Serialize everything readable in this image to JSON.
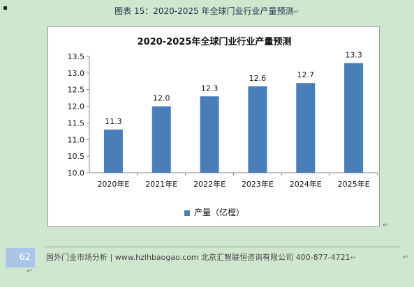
{
  "caption": "图表  15：2020-2025 年全球门业行业产量预测",
  "chart_data": {
    "type": "bar",
    "title": "2020-2025年全球门业行业产量预测",
    "categories": [
      "2020年E",
      "2021年E",
      "2022年E",
      "2023年E",
      "2024年E",
      "2025年E"
    ],
    "series": [
      {
        "name": "产量（亿樘）",
        "values": [
          11.3,
          12.0,
          12.3,
          12.6,
          12.7,
          13.3
        ],
        "color": "#4a7ebb"
      }
    ],
    "data_labels": [
      "11.3",
      "12.0",
      "12.3",
      "12.6",
      "12.7",
      "13.3"
    ],
    "y_ticks": [
      "10.0",
      "10.5",
      "11.0",
      "11.5",
      "12.0",
      "12.5",
      "13.0",
      "13.5"
    ],
    "ylim": [
      10.0,
      13.5
    ],
    "grid": false,
    "legend_position": "bottom"
  },
  "footer": {
    "page_number": "62",
    "text": "国外门业市场分析 | www.hzlhbaogao.com 北京汇智联恒咨询有限公司   400-877-4721"
  },
  "marks": {
    "caption_mark": "↵",
    "chart_mark": "↵",
    "footer_mark": "↵",
    "bottom_mark": "↵",
    "right_mark": "↵"
  }
}
